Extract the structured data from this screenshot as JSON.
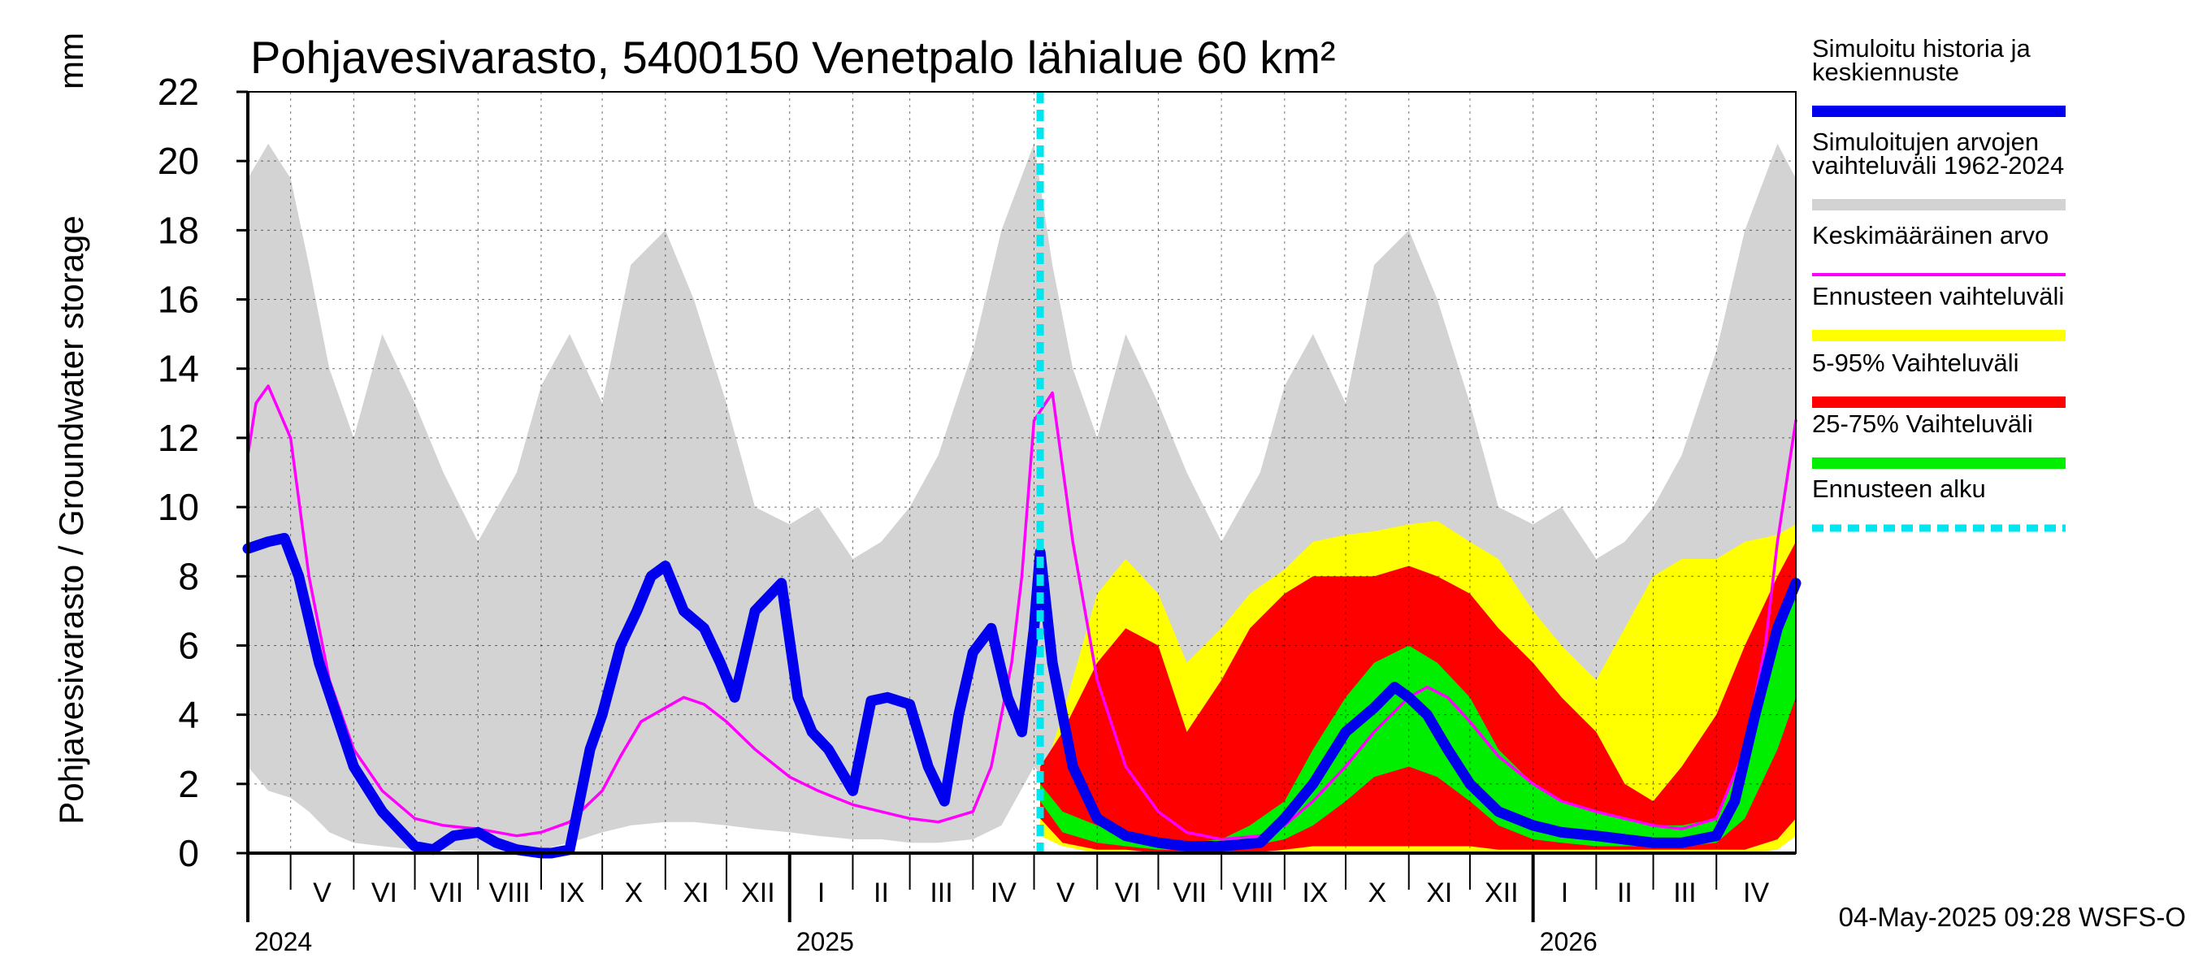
{
  "chart_data": {
    "type": "area",
    "title": "Pohjavesivarasto, 5400150 Venetpalo lähialue 60 km²",
    "ylabel": "Pohjavesivarasto / Groundwater storage",
    "yunit": "mm",
    "ylim": [
      0,
      22
    ],
    "yticks": [
      "0",
      "2",
      "4",
      "6",
      "8",
      "10",
      "12",
      "14",
      "16",
      "18",
      "20",
      "22"
    ],
    "grid": true,
    "legend_position": "right",
    "x_start": "2024-04-10",
    "x_end": "2026-05-10",
    "forecast_start": "2025-05-04",
    "month_labels": [
      "V",
      "VI",
      "VII",
      "VIII",
      "IX",
      "X",
      "XI",
      "XII",
      "I",
      "II",
      "III",
      "IV",
      "V",
      "VI",
      "VII",
      "VIII",
      "IX",
      "X",
      "XI",
      "XII",
      "I",
      "II",
      "III",
      "IV"
    ],
    "month_dates": [
      "2024-05-01",
      "2024-06-01",
      "2024-07-01",
      "2024-08-01",
      "2024-09-01",
      "2024-10-01",
      "2024-11-01",
      "2024-12-01",
      "2025-01-01",
      "2025-02-01",
      "2025-03-01",
      "2025-04-01",
      "2025-05-01",
      "2025-06-01",
      "2025-07-01",
      "2025-08-01",
      "2025-09-01",
      "2025-10-01",
      "2025-11-01",
      "2025-12-01",
      "2026-01-01",
      "2026-02-01",
      "2026-03-01",
      "2026-04-01"
    ],
    "year_labels": [
      {
        "text": "2024",
        "date": "2024-04-10"
      },
      {
        "text": "2025",
        "date": "2025-01-01"
      },
      {
        "text": "2026",
        "date": "2026-01-01"
      }
    ],
    "legend": [
      {
        "label": "Simuloitu historia ja keskiennuste",
        "color": "#0000ee"
      },
      {
        "label": "Simuloitujen arvojen vaihteluväli 1962-2024",
        "color": "#d3d3d3"
      },
      {
        "label": "Keskimääräinen arvo",
        "color": "#ff00ff"
      },
      {
        "label": "Ennusteen vaihteluväli",
        "color": "#ffff00"
      },
      {
        "label": "5-95% Vaihteluväli",
        "color": "#ff0000"
      },
      {
        "label": "25-75% Vaihteluväli",
        "color": "#00ee00"
      },
      {
        "label": "Ennusteen alku",
        "color": "#00e5ee"
      }
    ],
    "series": [
      {
        "name": "Simuloitujen arvojen vaihteluväli 1962-2024",
        "kind": "band",
        "color": "#d3d3d3",
        "x": [
          "2024-04-10",
          "2024-04-20",
          "2024-05-01",
          "2024-05-10",
          "2024-05-20",
          "2024-06-01",
          "2024-06-15",
          "2024-07-01",
          "2024-07-15",
          "2024-08-01",
          "2024-08-20",
          "2024-09-01",
          "2024-09-15",
          "2024-10-01",
          "2024-10-15",
          "2024-11-01",
          "2024-11-15",
          "2024-12-01",
          "2024-12-15",
          "2025-01-01",
          "2025-01-15",
          "2025-02-01",
          "2025-02-15",
          "2025-03-01",
          "2025-03-15",
          "2025-04-01",
          "2025-04-15",
          "2025-05-01",
          "2025-05-10",
          "2025-05-20",
          "2025-06-01",
          "2025-06-15",
          "2025-07-01",
          "2025-07-15",
          "2025-08-01",
          "2025-08-20",
          "2025-09-01",
          "2025-09-15",
          "2025-10-01",
          "2025-10-15",
          "2025-11-01",
          "2025-11-15",
          "2025-12-01",
          "2025-12-15",
          "2026-01-01",
          "2026-01-15",
          "2026-02-01",
          "2026-02-15",
          "2026-03-01",
          "2026-03-15",
          "2026-04-01",
          "2026-04-15",
          "2026-05-01",
          "2026-05-10"
        ],
        "low": [
          2.5,
          1.8,
          1.6,
          1.2,
          0.6,
          0.3,
          0.2,
          0.1,
          0.1,
          0.0,
          0.0,
          0.1,
          0.3,
          0.6,
          0.8,
          0.9,
          0.9,
          0.8,
          0.7,
          0.6,
          0.5,
          0.4,
          0.4,
          0.3,
          0.3,
          0.4,
          0.8,
          2.5,
          1.8,
          1.0,
          0.6,
          0.3,
          0.2,
          0.1,
          0.1,
          0.0,
          0.0,
          0.1,
          0.3,
          0.6,
          0.8,
          0.9,
          0.9,
          0.8,
          0.7,
          0.6,
          0.5,
          0.4,
          0.4,
          0.3,
          0.3,
          0.4,
          0.8,
          2.0
        ],
        "high": [
          19.5,
          20.5,
          19.5,
          17.0,
          14.0,
          12.0,
          15.0,
          13.0,
          11.0,
          9.0,
          11.0,
          13.5,
          15.0,
          13.0,
          17.0,
          18.0,
          16.0,
          13.0,
          10.0,
          9.5,
          10.0,
          8.5,
          9.0,
          10.0,
          11.5,
          14.5,
          18.0,
          20.5,
          17.0,
          14.0,
          12.0,
          15.0,
          13.0,
          11.0,
          9.0,
          11.0,
          13.5,
          15.0,
          13.0,
          17.0,
          18.0,
          16.0,
          13.0,
          10.0,
          9.5,
          10.0,
          8.5,
          9.0,
          10.0,
          11.5,
          14.5,
          18.0,
          20.5,
          19.5
        ]
      },
      {
        "name": "Ennusteen vaihteluväli",
        "kind": "band",
        "color": "#ffff00",
        "x": [
          "2025-05-04",
          "2025-05-15",
          "2025-06-01",
          "2025-06-15",
          "2025-07-01",
          "2025-07-15",
          "2025-08-01",
          "2025-08-15",
          "2025-09-01",
          "2025-09-15",
          "2025-10-01",
          "2025-10-15",
          "2025-11-01",
          "2025-11-15",
          "2025-12-01",
          "2025-12-15",
          "2026-01-01",
          "2026-01-15",
          "2026-02-01",
          "2026-02-15",
          "2026-03-01",
          "2026-03-15",
          "2026-04-01",
          "2026-04-15",
          "2026-05-01",
          "2026-05-10"
        ],
        "low": [
          0.5,
          0.2,
          0.0,
          0.0,
          0.0,
          0.0,
          0.0,
          0.0,
          0.0,
          0.0,
          0.0,
          0.0,
          0.0,
          0.0,
          0.0,
          0.0,
          0.0,
          0.0,
          0.0,
          0.0,
          0.0,
          0.0,
          0.0,
          0.0,
          0.1,
          0.5
        ],
        "high": [
          2.0,
          4.0,
          7.5,
          8.5,
          7.5,
          5.5,
          6.5,
          7.5,
          8.2,
          9.0,
          9.2,
          9.3,
          9.5,
          9.6,
          9.0,
          8.5,
          7.0,
          6.0,
          5.0,
          6.5,
          8.0,
          8.5,
          8.5,
          9.0,
          9.2,
          9.5
        ]
      },
      {
        "name": "5-95% Vaihteluväli",
        "kind": "band",
        "color": "#ff0000",
        "x": [
          "2025-05-04",
          "2025-05-15",
          "2025-06-01",
          "2025-06-15",
          "2025-07-01",
          "2025-07-15",
          "2025-08-01",
          "2025-08-15",
          "2025-09-01",
          "2025-09-15",
          "2025-10-01",
          "2025-10-15",
          "2025-11-01",
          "2025-11-15",
          "2025-12-01",
          "2025-12-15",
          "2026-01-01",
          "2026-01-15",
          "2026-02-01",
          "2026-02-15",
          "2026-03-01",
          "2026-03-15",
          "2026-04-01",
          "2026-04-15",
          "2026-05-01",
          "2026-05-10"
        ],
        "low": [
          1.0,
          0.3,
          0.1,
          0.1,
          0.0,
          0.0,
          0.0,
          0.0,
          0.1,
          0.2,
          0.2,
          0.2,
          0.2,
          0.2,
          0.2,
          0.1,
          0.1,
          0.1,
          0.1,
          0.1,
          0.1,
          0.1,
          0.1,
          0.1,
          0.4,
          1.0
        ],
        "high": [
          2.5,
          3.5,
          5.5,
          6.5,
          6.0,
          3.5,
          5.0,
          6.5,
          7.5,
          8.0,
          8.0,
          8.0,
          8.3,
          8.0,
          7.5,
          6.5,
          5.5,
          4.5,
          3.5,
          2.0,
          1.5,
          2.5,
          4.0,
          6.0,
          8.0,
          9.0
        ]
      },
      {
        "name": "25-75% Vaihteluväli",
        "kind": "band",
        "color": "#00ee00",
        "x": [
          "2025-05-04",
          "2025-05-15",
          "2025-06-01",
          "2025-06-15",
          "2025-07-01",
          "2025-07-15",
          "2025-08-01",
          "2025-08-15",
          "2025-09-01",
          "2025-09-15",
          "2025-10-01",
          "2025-10-15",
          "2025-11-01",
          "2025-11-15",
          "2025-12-01",
          "2025-12-15",
          "2026-01-01",
          "2026-01-15",
          "2026-02-01",
          "2026-02-15",
          "2026-03-01",
          "2026-03-15",
          "2026-04-01",
          "2026-04-15",
          "2026-05-01",
          "2026-05-10"
        ],
        "low": [
          1.5,
          0.6,
          0.3,
          0.2,
          0.1,
          0.1,
          0.1,
          0.2,
          0.4,
          0.8,
          1.5,
          2.2,
          2.5,
          2.2,
          1.5,
          0.8,
          0.4,
          0.3,
          0.2,
          0.2,
          0.2,
          0.2,
          0.3,
          1.0,
          3.0,
          4.5
        ],
        "high": [
          2.0,
          1.2,
          0.8,
          0.5,
          0.4,
          0.3,
          0.4,
          0.8,
          1.5,
          3.0,
          4.5,
          5.5,
          6.0,
          5.5,
          4.5,
          3.0,
          2.0,
          1.5,
          1.2,
          1.0,
          0.8,
          0.8,
          1.0,
          3.0,
          6.0,
          8.0
        ]
      },
      {
        "name": "Keskimääräinen arvo",
        "kind": "line",
        "color": "#ff00ff",
        "x": [
          "2024-04-10",
          "2024-04-14",
          "2024-04-20",
          "2024-05-01",
          "2024-05-10",
          "2024-05-20",
          "2024-06-01",
          "2024-06-15",
          "2024-07-01",
          "2024-07-15",
          "2024-08-01",
          "2024-08-20",
          "2024-09-01",
          "2024-09-15",
          "2024-10-01",
          "2024-10-10",
          "2024-10-20",
          "2024-11-01",
          "2024-11-10",
          "2024-11-20",
          "2024-12-01",
          "2024-12-15",
          "2025-01-01",
          "2025-01-15",
          "2025-02-01",
          "2025-02-15",
          "2025-03-01",
          "2025-03-15",
          "2025-04-01",
          "2025-04-10",
          "2025-04-20",
          "2025-04-25",
          "2025-05-01",
          "2025-05-10",
          "2025-05-20",
          "2025-06-01",
          "2025-06-15",
          "2025-07-01",
          "2025-07-15",
          "2025-08-01",
          "2025-08-20",
          "2025-09-01",
          "2025-09-15",
          "2025-10-01",
          "2025-10-15",
          "2025-11-01",
          "2025-11-10",
          "2025-11-20",
          "2025-12-01",
          "2025-12-15",
          "2026-01-01",
          "2026-01-15",
          "2026-02-01",
          "2026-02-15",
          "2026-03-01",
          "2026-03-15",
          "2026-04-01",
          "2026-04-15",
          "2026-04-25",
          "2026-05-01",
          "2026-05-10"
        ],
        "y": [
          11.5,
          13.0,
          13.5,
          12.0,
          8.0,
          5.0,
          3.0,
          1.8,
          1.0,
          0.8,
          0.7,
          0.5,
          0.6,
          0.9,
          1.8,
          2.8,
          3.8,
          4.2,
          4.5,
          4.3,
          3.8,
          3.0,
          2.2,
          1.8,
          1.4,
          1.2,
          1.0,
          0.9,
          1.2,
          2.5,
          5.5,
          8.0,
          12.5,
          13.3,
          9.0,
          5.0,
          2.5,
          1.2,
          0.6,
          0.4,
          0.5,
          0.8,
          1.5,
          2.5,
          3.5,
          4.5,
          4.8,
          4.5,
          3.8,
          2.8,
          2.0,
          1.5,
          1.2,
          1.0,
          0.8,
          0.7,
          1.0,
          3.0,
          6.0,
          9.0,
          12.5
        ]
      },
      {
        "name": "Simuloitu historia ja keskiennuste",
        "kind": "line",
        "color": "#0000ee",
        "x": [
          "2024-04-10",
          "2024-04-20",
          "2024-04-28",
          "2024-05-05",
          "2024-05-15",
          "2024-06-01",
          "2024-06-15",
          "2024-07-01",
          "2024-07-10",
          "2024-07-20",
          "2024-08-01",
          "2024-08-10",
          "2024-08-20",
          "2024-09-01",
          "2024-09-06",
          "2024-09-15",
          "2024-09-25",
          "2024-10-01",
          "2024-10-10",
          "2024-10-18",
          "2024-10-25",
          "2024-11-01",
          "2024-11-10",
          "2024-11-20",
          "2024-11-28",
          "2024-12-05",
          "2024-12-15",
          "2024-12-28",
          "2025-01-05",
          "2025-01-12",
          "2025-01-20",
          "2025-02-01",
          "2025-02-10",
          "2025-02-18",
          "2025-03-01",
          "2025-03-10",
          "2025-03-18",
          "2025-03-25",
          "2025-04-01",
          "2025-04-10",
          "2025-04-18",
          "2025-04-25",
          "2025-05-01",
          "2025-05-04",
          "2025-05-10",
          "2025-05-20",
          "2025-06-01",
          "2025-06-15",
          "2025-07-01",
          "2025-07-15",
          "2025-08-01",
          "2025-08-20",
          "2025-09-01",
          "2025-09-15",
          "2025-10-01",
          "2025-10-15",
          "2025-10-25",
          "2025-11-01",
          "2025-11-10",
          "2025-11-20",
          "2025-12-01",
          "2025-12-15",
          "2026-01-01",
          "2026-01-15",
          "2026-02-01",
          "2026-02-15",
          "2026-03-01",
          "2026-03-15",
          "2026-04-01",
          "2026-04-10",
          "2026-04-20",
          "2026-05-01",
          "2026-05-10"
        ],
        "y": [
          8.8,
          9.0,
          9.1,
          8.0,
          5.5,
          2.5,
          1.2,
          0.2,
          0.1,
          0.5,
          0.6,
          0.3,
          0.1,
          0.0,
          0.0,
          0.1,
          3.0,
          4.0,
          6.0,
          7.0,
          8.0,
          8.3,
          7.0,
          6.5,
          5.5,
          4.5,
          7.0,
          7.8,
          4.5,
          3.5,
          3.0,
          1.8,
          4.4,
          4.5,
          4.3,
          2.5,
          1.5,
          4.0,
          5.8,
          6.5,
          4.5,
          3.5,
          6.5,
          8.7,
          5.5,
          2.5,
          1.0,
          0.5,
          0.3,
          0.2,
          0.2,
          0.3,
          1.0,
          2.0,
          3.5,
          4.2,
          4.8,
          4.5,
          4.0,
          3.0,
          2.0,
          1.2,
          0.8,
          0.6,
          0.5,
          0.4,
          0.3,
          0.3,
          0.5,
          1.5,
          4.0,
          6.5,
          7.8
        ]
      }
    ],
    "footer": "04-May-2025 09:28 WSFS-O"
  }
}
